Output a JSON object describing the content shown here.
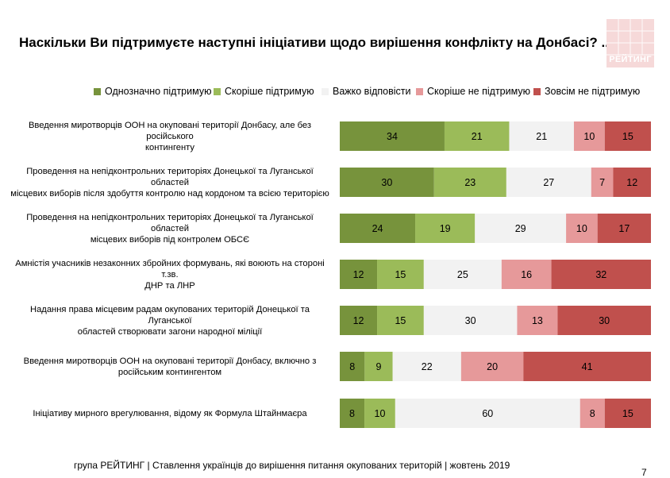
{
  "title": "Наскільки Ви підтримуєте наступні ініціативи щодо вирішення конфлікту на Донбасі? ...",
  "logo_text": "РЕЙТИНГ",
  "footer": "група РЕЙТИНГ | Ставлення українців до вирішення питання окупованих територій  | жовтень  2019",
  "page_number": "7",
  "colors": {
    "definitely_support": "#77933c",
    "rather_support": "#9bbb59",
    "hard_to_say": "#f2f2f2",
    "rather_not_support": "#e6999a",
    "definitely_not_support": "#c0504d"
  },
  "chart_data": {
    "type": "bar",
    "orientation": "horizontal",
    "stacked": true,
    "legend_position": "top",
    "categories": [
      "Введення миротворців ООН на окуповані території Донбасу, але без російського контингенту",
      "Проведення на непідконтрольних територіях Донецької та Луганської областей місцевих виборів після здобуття контролю над кордоном та всією територією",
      "Проведення на непідконтрольних територіях Донецької та Луганської областей місцевих виборів під контролем ОБСЄ",
      "Амністія учасників незаконних збройних формувань, які воюють на стороні т.зв. ДНР та ЛНР",
      "Надання права місцевим радам окупованих територій Донецької та Луганської областей створювати загони народної міліції",
      "Введення миротворців ООН на окуповані території Донбасу, включно з російським контингентом",
      "Ініціативу мирного врегулювання, відому як Формула Штайнмаєра"
    ],
    "category_lines": [
      [
        "Введення миротворців ООН на окуповані території Донбасу, але без російського",
        "контингенту"
      ],
      [
        "Проведення на непідконтрольних територіях Донецької та Луганської областей",
        "місцевих виборів після здобуття контролю над кордоном та всією територією"
      ],
      [
        "Проведення на непідконтрольних територіях Донецької та Луганської областей",
        "місцевих виборів під контролем ОБСЄ"
      ],
      [
        "Амністія учасників незаконних збройних формувань, які воюють на стороні т.зв.",
        "ДНР та ЛНР"
      ],
      [
        "Надання права місцевим радам окупованих територій Донецької та Луганської",
        "областей створювати загони народної міліції"
      ],
      [
        "Введення миротворців ООН на окуповані території Донбасу, включно з",
        "російським контингентом"
      ],
      [
        "Ініціативу мирного врегулювання, відому як Формула Штайнмаєра"
      ]
    ],
    "series": [
      {
        "name": "Однозначно підтримую",
        "color": "#77933c",
        "values": [
          34,
          30,
          24,
          12,
          12,
          8,
          8
        ]
      },
      {
        "name": "Скоріше підтримую",
        "color": "#9bbb59",
        "values": [
          21,
          23,
          19,
          15,
          15,
          9,
          10
        ]
      },
      {
        "name": "Важко відповісти",
        "color": "#f2f2f2",
        "values": [
          21,
          27,
          29,
          25,
          30,
          22,
          60
        ]
      },
      {
        "name": "Скоріше не підтримую",
        "color": "#e6999a",
        "values": [
          10,
          7,
          10,
          16,
          13,
          20,
          8
        ]
      },
      {
        "name": "Зовсім не підтримую",
        "color": "#c0504d",
        "values": [
          15,
          12,
          17,
          32,
          30,
          41,
          15
        ]
      }
    ],
    "grid": false
  }
}
